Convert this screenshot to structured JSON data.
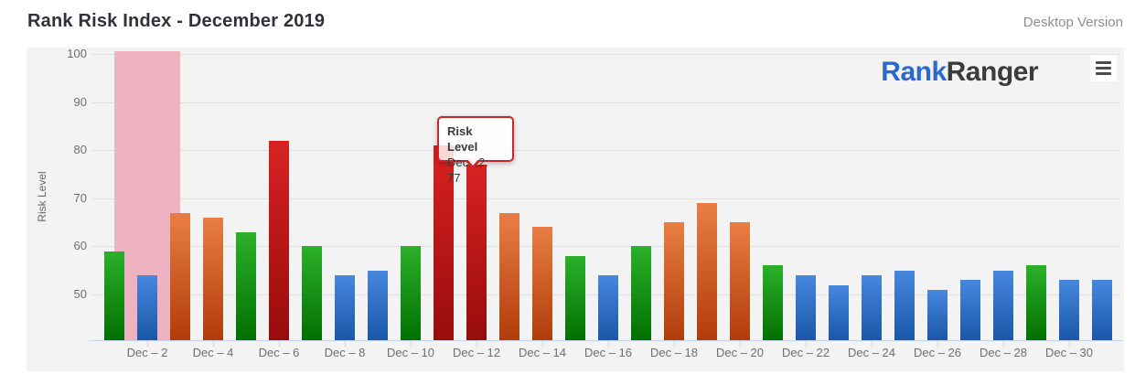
{
  "header": {
    "title": "Rank Risk Index - December 2019",
    "version_label": "Desktop Version"
  },
  "logo": {
    "rank": "Rank",
    "ranger": "Ranger",
    "rank_color": "#2a6ace",
    "ranger_color": "#3b3b3b"
  },
  "tooltip": {
    "title": "Risk Level",
    "value": "Dec 12: 77",
    "border_color": "#c62828"
  },
  "chart_data": {
    "type": "bar",
    "title": "Rank Risk Index - December 2019",
    "xlabel": "",
    "ylabel": "Risk Level",
    "ylim": [
      40.5,
      100.5
    ],
    "yticks": [
      50,
      60,
      70,
      80,
      90,
      100
    ],
    "grid": "horizontal",
    "background": "#f3f3f3",
    "legend": "none",
    "categories": [
      "Dec 1",
      "Dec 2",
      "Dec 3",
      "Dec 4",
      "Dec 5",
      "Dec 6",
      "Dec 7",
      "Dec 8",
      "Dec 9",
      "Dec 10",
      "Dec 11",
      "Dec 12",
      "Dec 13",
      "Dec 14",
      "Dec 15",
      "Dec 16",
      "Dec 17",
      "Dec 18",
      "Dec 19",
      "Dec 20",
      "Dec 21",
      "Dec 22",
      "Dec 23",
      "Dec 24",
      "Dec 25",
      "Dec 26",
      "Dec 27",
      "Dec 28",
      "Dec 29",
      "Dec 30",
      "Dec 31"
    ],
    "values": [
      59,
      54,
      67,
      66,
      63,
      82,
      60,
      54,
      55,
      60,
      81,
      77,
      67,
      64,
      58,
      54,
      60,
      65,
      69,
      65,
      56,
      54,
      52,
      54,
      55,
      51,
      53,
      55,
      56,
      53,
      53
    ],
    "point_colors": [
      "green",
      "blue",
      "orange",
      "orange",
      "green",
      "red",
      "green",
      "blue",
      "blue",
      "green",
      "red",
      "red",
      "orange",
      "orange",
      "green",
      "blue",
      "green",
      "orange",
      "orange",
      "orange",
      "green",
      "blue",
      "blue",
      "blue",
      "blue",
      "blue",
      "blue",
      "blue",
      "green",
      "blue",
      "blue"
    ],
    "palette": {
      "green": {
        "top": "#2cb02a",
        "bottom": "#027002"
      },
      "blue": {
        "top": "#4787de",
        "bottom": "#1a57a8"
      },
      "orange": {
        "top": "#e97e45",
        "bottom": "#b13c0a"
      },
      "red": {
        "top": "#d92222",
        "bottom": "#970c0c"
      }
    },
    "xtick_labels": [
      {
        "index": 1,
        "label": "Dec – 2"
      },
      {
        "index": 3,
        "label": "Dec – 4"
      },
      {
        "index": 5,
        "label": "Dec – 6"
      },
      {
        "index": 7,
        "label": "Dec – 8"
      },
      {
        "index": 9,
        "label": "Dec – 10"
      },
      {
        "index": 11,
        "label": "Dec – 12"
      },
      {
        "index": 13,
        "label": "Dec – 14"
      },
      {
        "index": 15,
        "label": "Dec – 16"
      },
      {
        "index": 17,
        "label": "Dec – 18"
      },
      {
        "index": 19,
        "label": "Dec – 20"
      },
      {
        "index": 21,
        "label": "Dec – 22"
      },
      {
        "index": 23,
        "label": "Dec – 24"
      },
      {
        "index": 25,
        "label": "Dec – 26"
      },
      {
        "index": 27,
        "label": "Dec – 28"
      },
      {
        "index": 29,
        "label": "Dec – 30"
      }
    ],
    "highlight_band": {
      "from_index": 0,
      "to_index": 2,
      "from_category": "Dec 1",
      "to_category": "Dec 3",
      "color": "#eeb3c1"
    },
    "tooltip_point": {
      "index": 11,
      "category": "Dec 12",
      "value": 77
    }
  }
}
